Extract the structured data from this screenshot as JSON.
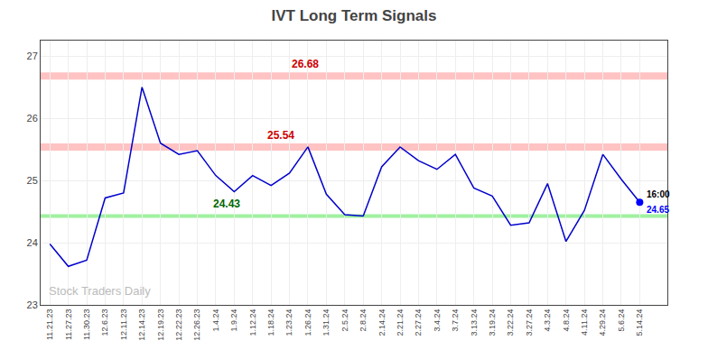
{
  "chart_data": {
    "type": "line",
    "title": "IVT Long Term Signals",
    "categories": [
      "11.21.23",
      "11.27.23",
      "11.30.23",
      "12.6.23",
      "12.11.23",
      "12.14.23",
      "12.19.23",
      "12.22.23",
      "12.26.23",
      "1.4.24",
      "1.9.24",
      "1.12.24",
      "1.18.24",
      "1.23.24",
      "1.26.24",
      "1.31.24",
      "2.5.24",
      "2.8.24",
      "2.14.24",
      "2.21.24",
      "2.27.24",
      "3.4.24",
      "3.7.24",
      "3.13.24",
      "3.19.24",
      "3.22.24",
      "3.27.24",
      "4.3.24",
      "4.8.24",
      "4.11.24",
      "4.29.24",
      "5.6.24",
      "5.14.24"
    ],
    "values": [
      23.98,
      23.62,
      23.72,
      24.72,
      24.8,
      26.5,
      25.6,
      25.42,
      25.48,
      25.08,
      24.82,
      25.08,
      24.92,
      25.12,
      25.54,
      24.78,
      24.45,
      24.43,
      25.22,
      25.54,
      25.32,
      25.18,
      25.42,
      24.88,
      24.75,
      24.28,
      24.32,
      24.95,
      24.02,
      24.52,
      25.42,
      25.02,
      24.65
    ],
    "color": "#0000cc",
    "ylim": [
      23.0,
      27.25
    ],
    "yticks": [
      23,
      24,
      25,
      26,
      27
    ],
    "grid": true,
    "hlines": [
      {
        "value": 26.68,
        "label": "26.68",
        "color": "#ffaaaa",
        "label_color": "#cc0000"
      },
      {
        "value": 25.54,
        "label": "25.54",
        "color": "#ffaaaa",
        "label_color": "#cc0000"
      },
      {
        "value": 24.43,
        "label": "24.43",
        "color": "#88ee88",
        "label_color": "#006600"
      }
    ],
    "last_point": {
      "value": 24.65,
      "label": "24.65",
      "time_label": "16:00",
      "color": "blue"
    },
    "watermark": {
      "text": "Stock Traders Daily",
      "color": "#bbbbbb"
    }
  }
}
